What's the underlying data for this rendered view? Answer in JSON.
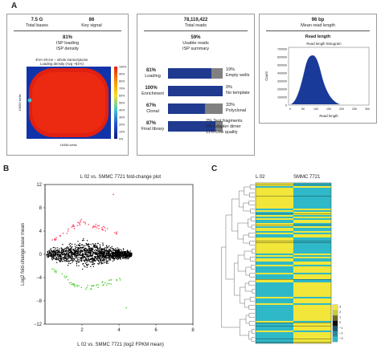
{
  "panels": {
    "a": "A",
    "b": "B",
    "c": "C"
  },
  "panel_a": {
    "left": {
      "stats": [
        {
          "value": "7.5 G",
          "label": "Total bases"
        },
        {
          "value": "86",
          "label": "Key signal"
        }
      ],
      "isp_percent": "81%",
      "isp_line1": "ISP loading",
      "isp_line2": "ISP density",
      "heatmap_title1": "EVA-20-ion – whole transcriptome",
      "heatmap_title2": "Loading density (Avg ~81%)",
      "x_label": "15456 wells",
      "y_label": "10656 wells",
      "scale_ticks": [
        "100%",
        "90%",
        "80%",
        "70%",
        "60%",
        "50%",
        "40%",
        "30%",
        "20%",
        "10%",
        "0%"
      ]
    },
    "middle": {
      "total_value": "78,119,422",
      "total_label": "Total reads",
      "usable_percent": "59%",
      "usable_line1": "Usable reads",
      "usable_line2": "ISP summary",
      "bars": [
        {
          "pct": "81%",
          "label": "Loading",
          "fill": 0.81,
          "gray": 0.19,
          "right_pct": "19%",
          "right_label": "Empty wells"
        },
        {
          "pct": "100%",
          "label": "Enrichment",
          "fill": 1.0,
          "gray": 0.0,
          "right_pct": "0%",
          "right_label": "No template"
        },
        {
          "pct": "67%",
          "label": "Clonal",
          "fill": 0.67,
          "gray": 0.33,
          "right_pct": "33%",
          "right_label": "Polyclonal"
        },
        {
          "pct": "87%",
          "label": "Final library",
          "fill": 0.87,
          "gray": 0.13,
          "right_lines": [
            "2% Test fragments",
            "0% Adapter dimer",
            "11% Low quality"
          ]
        }
      ]
    },
    "right": {
      "mean_value": "96 bp",
      "mean_label": "Mean read length",
      "section_title": "Read length",
      "chart_title": "Read length histogram",
      "ylabel": "Count",
      "xlabel": "Read length",
      "yticks": [
        "700000",
        "600000",
        "500000",
        "400000",
        "300000",
        "200000",
        "100000",
        "0"
      ],
      "xticks": [
        "0",
        "50",
        "100",
        "150",
        "200",
        "250",
        "300"
      ]
    }
  },
  "chart_data": [
    {
      "type": "scatter",
      "title": "L 02 vs. SMMC 7721 fold-change plot",
      "xlabel": "L 02 vs. SMMC 7721 (log2 FPKM mean)",
      "ylabel": "Log2 fold-change base mean",
      "xlim": [
        0,
        8
      ],
      "ylim": [
        -12,
        12
      ],
      "xticks": [
        2,
        4,
        6,
        8
      ],
      "yticks": [
        12,
        8,
        4,
        0,
        -4,
        -8,
        -12
      ],
      "series": [
        {
          "color": "#000000"
        },
        {
          "color": "#ff3355"
        },
        {
          "color": "#44cc22"
        }
      ],
      "colors": {
        "bulk": "#000000",
        "up": "#ff3355",
        "down": "#44cc22"
      }
    },
    {
      "type": "heatmap",
      "columns": [
        "L 02",
        "SMMC 7721"
      ],
      "legend_ticks": [
        "3",
        "2",
        "1",
        "0",
        "−1",
        "−2",
        "−3"
      ],
      "colors": {
        "high": "#f2e63a",
        "mid": "#101010",
        "low": "#2fb8c8"
      }
    }
  ],
  "colors": {
    "bar_fill": "#1f3a8f",
    "bar_gray": "#808080",
    "heat_blue": "#1133aa",
    "heat_red": "#e02010",
    "hist": "#1a3a9a"
  }
}
